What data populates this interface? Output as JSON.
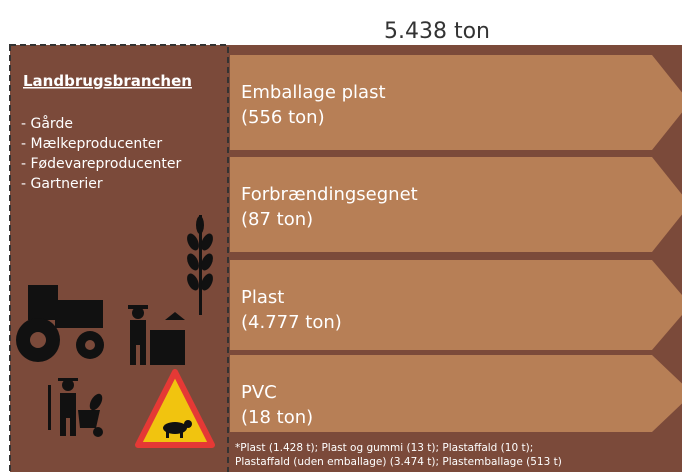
{
  "title": "5.438 ton",
  "sector": {
    "heading": "Landbrugsbranchen",
    "items": [
      "- Gårde",
      "- Mælkeproducenter",
      "- Fødevareproducenter",
      "- Gartnerier"
    ]
  },
  "streams": [
    {
      "name": "Emballage plast",
      "amount": "(556 ton)"
    },
    {
      "name": "Forbrændingsegnet",
      "amount": "(87 ton)"
    },
    {
      "name": "Plast",
      "amount": "(4.777 ton)"
    },
    {
      "name": "PVC",
      "amount": "(18 ton)"
    }
  ],
  "footnote": [
    "*Plast (1.428 t); Plast og gummi (13 t); Plastaffald (10 t);",
    "Plastaffald (uden emballage) (3.474 t); Plastemballage (513 t)"
  ]
}
